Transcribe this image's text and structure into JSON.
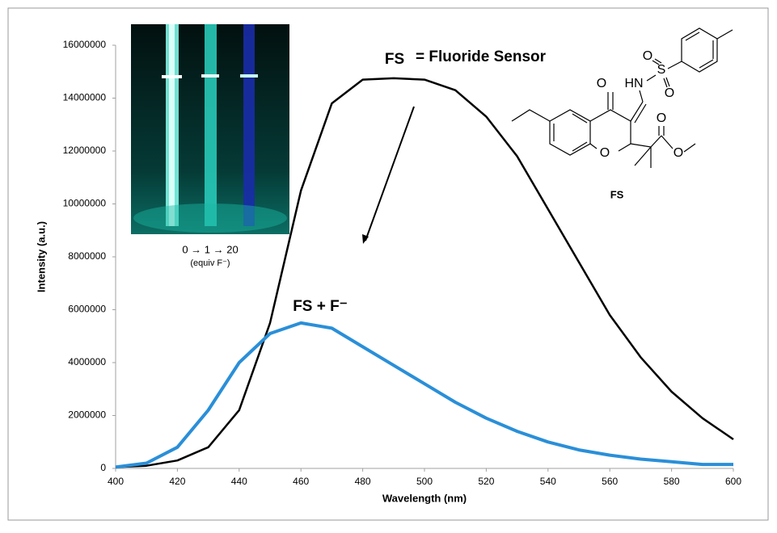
{
  "chart_data": {
    "type": "line",
    "x_label": "Wavelength (nm)",
    "y_label": "Intensity (a.u.)",
    "x": [
      400,
      410,
      420,
      430,
      440,
      450,
      460,
      470,
      480,
      490,
      500,
      510,
      520,
      530,
      540,
      550,
      560,
      570,
      580,
      590,
      600
    ],
    "series": [
      {
        "name": "FS",
        "color": "#000000",
        "values": [
          50000,
          100000,
          300000,
          800000,
          2200000,
          5500000,
          10500000,
          13800000,
          14700000,
          14750000,
          14700000,
          14300000,
          13300000,
          11800000,
          9800000,
          7800000,
          5800000,
          4200000,
          2900000,
          1900000,
          1100000
        ]
      },
      {
        "name": "FS + F⁻",
        "color": "#2a8fd8",
        "values": [
          50000,
          200000,
          800000,
          2200000,
          4000000,
          5100000,
          5500000,
          5300000,
          4600000,
          3900000,
          3200000,
          2500000,
          1900000,
          1400000,
          1000000,
          700000,
          500000,
          350000,
          250000,
          150000,
          150000
        ]
      }
    ],
    "legend_suffix": "= Fluoride Sensor",
    "xlim": [
      400,
      600
    ],
    "xticks": [
      400,
      420,
      440,
      460,
      480,
      500,
      520,
      540,
      560,
      580,
      600
    ],
    "ylim": [
      0,
      16000000
    ],
    "yticks": [
      0,
      2000000,
      4000000,
      6000000,
      8000000,
      10000000,
      12000000,
      14000000,
      16000000
    ],
    "grid": false,
    "inset": {
      "caption": "0 → 1 → 20",
      "subcaption": "(equiv F⁻)"
    },
    "structure": {
      "atoms": [
        "O",
        "HN",
        "S",
        "O",
        "O",
        "O",
        "O",
        "O"
      ],
      "name": "FS"
    }
  }
}
